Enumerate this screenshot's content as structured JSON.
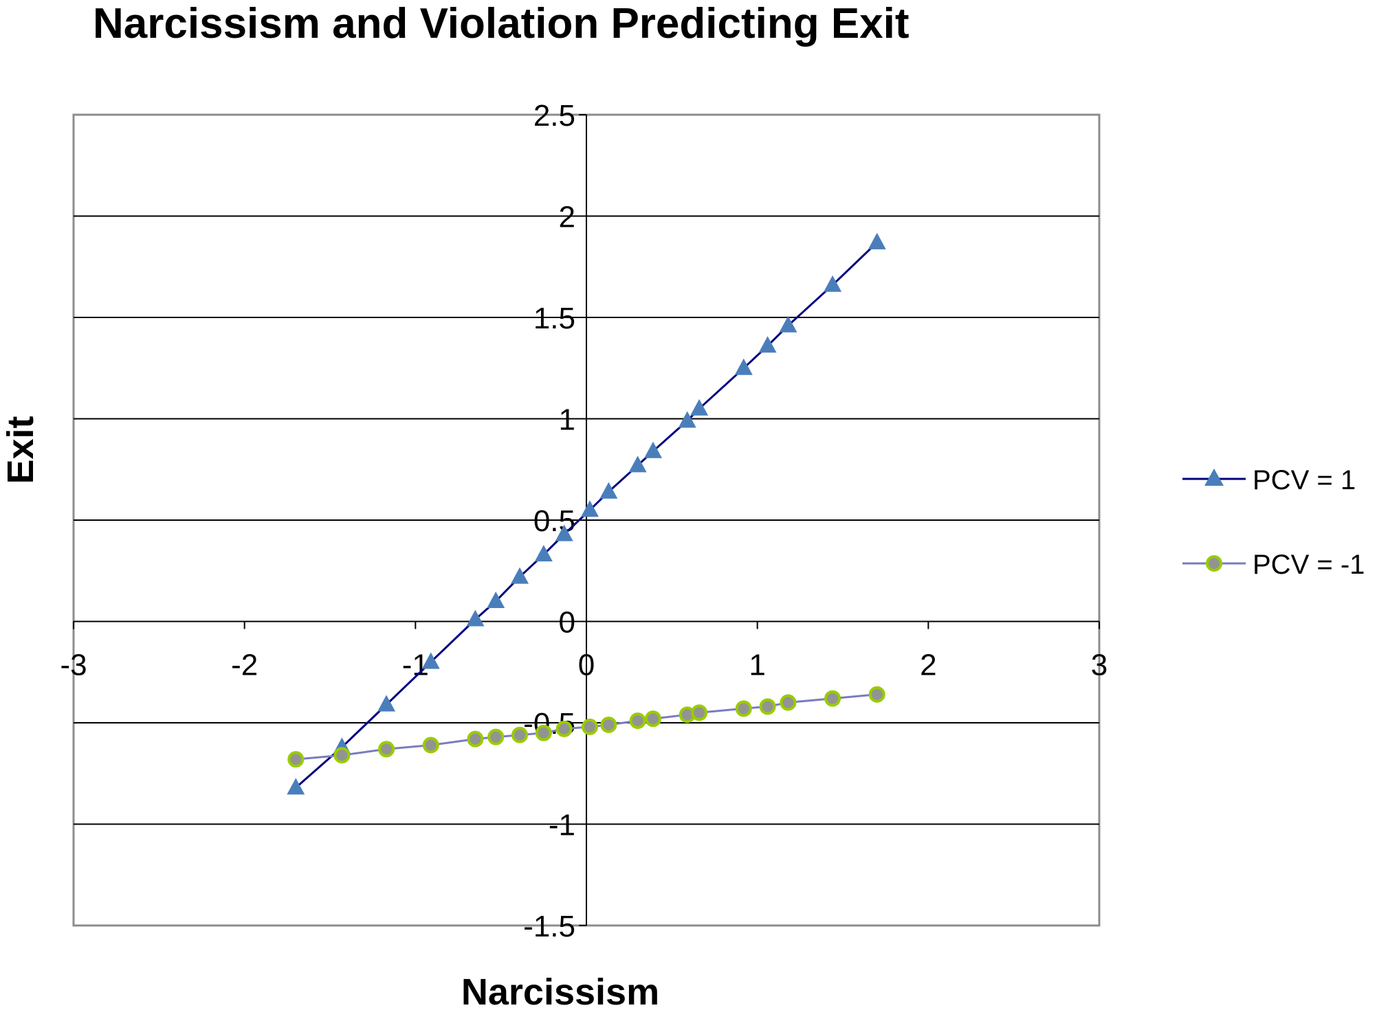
{
  "chart_data": {
    "type": "line",
    "title": "Narcissism and Violation Predicting Exit",
    "xlabel": "Narcissism",
    "ylabel": "Exit",
    "xlim": [
      -3,
      3
    ],
    "ylim": [
      -1.5,
      2.5
    ],
    "xticks": [
      -3,
      -2,
      -1,
      0,
      1,
      2,
      3
    ],
    "yticks": [
      -1.5,
      -1,
      -0.5,
      0,
      0.5,
      1,
      1.5,
      2,
      2.5
    ],
    "grid": "horizontal",
    "legend_position": "right",
    "series": [
      {
        "name": "PCV = 1",
        "marker": "triangle",
        "line_color": "#000080",
        "marker_color": "#4a7ebb",
        "x": [
          -1.7,
          -1.43,
          -1.17,
          -0.91,
          -0.65,
          -0.53,
          -0.39,
          -0.25,
          -0.13,
          0.02,
          0.13,
          0.3,
          0.39,
          0.59,
          0.66,
          0.92,
          1.06,
          1.18,
          1.44,
          1.7
        ],
        "y": [
          -0.82,
          -0.62,
          -0.41,
          -0.2,
          0.01,
          0.1,
          0.22,
          0.33,
          0.43,
          0.55,
          0.64,
          0.77,
          0.84,
          0.99,
          1.05,
          1.25,
          1.36,
          1.46,
          1.66,
          1.87
        ]
      },
      {
        "name": "PCV = -1",
        "marker": "circle",
        "line_color": "#7b7bbf",
        "marker_color": "#939393",
        "marker_edge": "#99cc00",
        "x": [
          -1.7,
          -1.43,
          -1.17,
          -0.91,
          -0.65,
          -0.53,
          -0.39,
          -0.25,
          -0.13,
          0.02,
          0.13,
          0.3,
          0.39,
          0.59,
          0.66,
          0.92,
          1.06,
          1.18,
          1.44,
          1.7
        ],
        "y": [
          -0.68,
          -0.66,
          -0.63,
          -0.61,
          -0.58,
          -0.57,
          -0.56,
          -0.55,
          -0.53,
          -0.52,
          -0.51,
          -0.49,
          -0.48,
          -0.46,
          -0.45,
          -0.43,
          -0.42,
          -0.4,
          -0.38,
          -0.36
        ]
      }
    ]
  }
}
